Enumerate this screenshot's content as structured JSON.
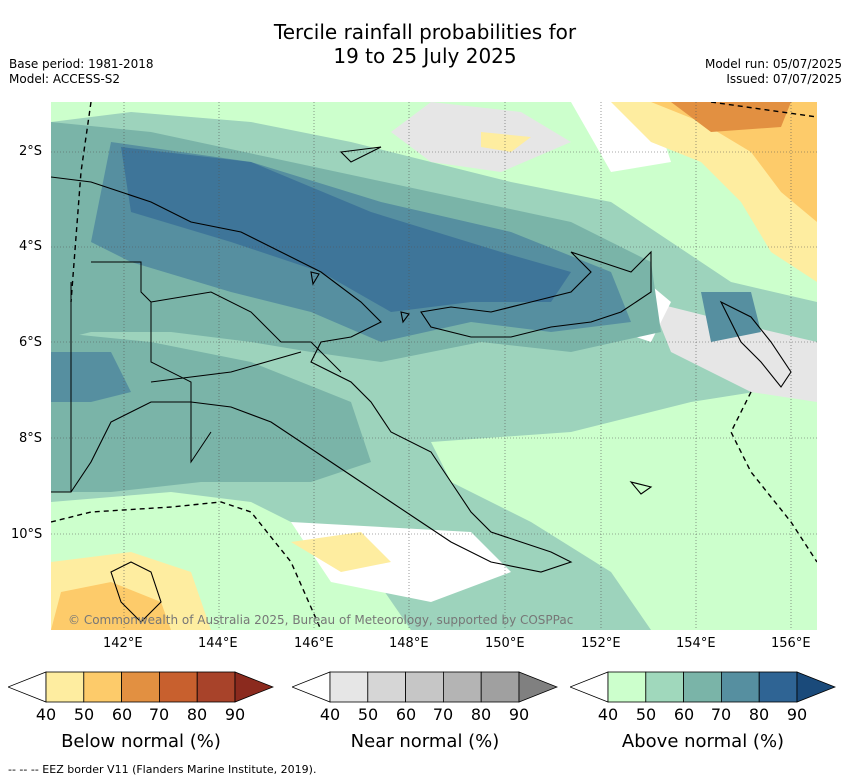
{
  "title_line1": "Tercile rainfall probabilities for",
  "title_line2": "19 to 25 July 2025",
  "base_period": "Base period: 1981-2018",
  "model": "Model: ACCESS-S2",
  "model_run": "Model run: 05/07/2025",
  "issued": "Issued: 07/07/2025",
  "lat_ticks": [
    "2°S",
    "4°S",
    "6°S",
    "8°S",
    "10°S"
  ],
  "lon_ticks": [
    "142°E",
    "144°E",
    "146°E",
    "148°E",
    "150°E",
    "152°E",
    "154°E",
    "156°E"
  ],
  "copyright": "© Commonwealth of Australia 2025, Bureau of Meteorology, supported by COSPPac",
  "legend": {
    "below": {
      "title": "Below normal (%)",
      "colors": [
        "#ffffff",
        "#feeda0",
        "#fdcb6a",
        "#e29041",
        "#c8602e",
        "#a8432a",
        "#8b2a1e"
      ]
    },
    "near": {
      "title": "Near normal (%)",
      "colors": [
        "#ffffff",
        "#e6e6e6",
        "#d6d6d6",
        "#c6c6c6",
        "#b4b4b4",
        "#a0a0a0",
        "#808080"
      ]
    },
    "above": {
      "title": "Above normal (%)",
      "colors": [
        "#ffffff",
        "#ccffcc",
        "#a0d8bc",
        "#7ab4a8",
        "#568fa0",
        "#2f6494",
        "#1a4a7a"
      ]
    },
    "tick_labels": [
      "40",
      "50",
      "60",
      "70",
      "80",
      "90"
    ]
  },
  "footnote": "-- -- -- EEZ border V11 (Flanders Marine Institute, 2019)."
}
